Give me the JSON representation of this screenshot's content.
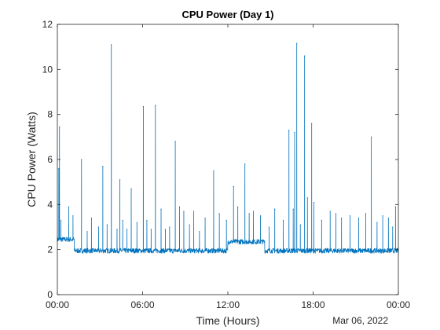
{
  "chart_data": {
    "type": "line",
    "title": "CPU Power (Day 1)",
    "xlabel": "Time (Hours)",
    "ylabel": "CPU Power (Watts)",
    "date_label": "Mar 06, 2022",
    "xlim": [
      0,
      24
    ],
    "ylim": [
      0,
      12
    ],
    "x_ticks": [
      0,
      6,
      12,
      18,
      24
    ],
    "x_tick_labels": [
      "00:00",
      "06:00",
      "12:00",
      "18:00",
      "00:00"
    ],
    "y_ticks": [
      0,
      2,
      4,
      6,
      8,
      10,
      12
    ],
    "grid": false,
    "line_color": "#0072BD",
    "series": [
      {
        "baseline_segments": [
          {
            "x_start": 0.0,
            "x_end": 1.2,
            "level": 2.45
          },
          {
            "x_start": 1.2,
            "x_end": 12.0,
            "level": 1.95
          },
          {
            "x_start": 12.0,
            "x_end": 14.6,
            "level": 2.35
          },
          {
            "x_start": 14.6,
            "x_end": 24.0,
            "level": 1.95
          }
        ],
        "spikes": [
          {
            "x": 0.1,
            "y": 5.6
          },
          {
            "x": 0.15,
            "y": 7.45
          },
          {
            "x": 0.25,
            "y": 3.3
          },
          {
            "x": 0.8,
            "y": 3.9
          },
          {
            "x": 1.1,
            "y": 3.5
          },
          {
            "x": 1.7,
            "y": 6.0
          },
          {
            "x": 2.1,
            "y": 2.8
          },
          {
            "x": 2.4,
            "y": 3.4
          },
          {
            "x": 2.9,
            "y": 3.0
          },
          {
            "x": 3.2,
            "y": 5.7
          },
          {
            "x": 3.5,
            "y": 3.1
          },
          {
            "x": 3.8,
            "y": 11.1
          },
          {
            "x": 4.2,
            "y": 2.9
          },
          {
            "x": 4.4,
            "y": 5.1
          },
          {
            "x": 4.6,
            "y": 3.3
          },
          {
            "x": 4.9,
            "y": 2.9
          },
          {
            "x": 5.2,
            "y": 4.7
          },
          {
            "x": 5.6,
            "y": 3.2
          },
          {
            "x": 6.05,
            "y": 8.35
          },
          {
            "x": 6.3,
            "y": 3.3
          },
          {
            "x": 6.6,
            "y": 2.9
          },
          {
            "x": 6.9,
            "y": 8.4
          },
          {
            "x": 7.3,
            "y": 3.8
          },
          {
            "x": 7.6,
            "y": 2.9
          },
          {
            "x": 7.9,
            "y": 3.0
          },
          {
            "x": 8.3,
            "y": 6.8
          },
          {
            "x": 8.6,
            "y": 3.9
          },
          {
            "x": 8.9,
            "y": 3.7
          },
          {
            "x": 9.3,
            "y": 3.1
          },
          {
            "x": 9.6,
            "y": 3.7
          },
          {
            "x": 10.0,
            "y": 2.8
          },
          {
            "x": 10.4,
            "y": 3.4
          },
          {
            "x": 11.0,
            "y": 5.5
          },
          {
            "x": 11.4,
            "y": 3.6
          },
          {
            "x": 11.9,
            "y": 3.3
          },
          {
            "x": 12.4,
            "y": 4.8
          },
          {
            "x": 12.7,
            "y": 3.9
          },
          {
            "x": 13.2,
            "y": 5.8
          },
          {
            "x": 13.5,
            "y": 3.6
          },
          {
            "x": 13.8,
            "y": 3.7
          },
          {
            "x": 14.3,
            "y": 3.5
          },
          {
            "x": 14.9,
            "y": 3.0
          },
          {
            "x": 15.3,
            "y": 3.8
          },
          {
            "x": 15.9,
            "y": 3.3
          },
          {
            "x": 16.3,
            "y": 7.3
          },
          {
            "x": 16.6,
            "y": 3.8
          },
          {
            "x": 16.7,
            "y": 7.2
          },
          {
            "x": 16.85,
            "y": 11.15
          },
          {
            "x": 17.1,
            "y": 3.1
          },
          {
            "x": 17.4,
            "y": 10.6
          },
          {
            "x": 17.6,
            "y": 4.3
          },
          {
            "x": 17.9,
            "y": 7.6
          },
          {
            "x": 18.05,
            "y": 4.1
          },
          {
            "x": 18.6,
            "y": 3.3
          },
          {
            "x": 19.2,
            "y": 3.7
          },
          {
            "x": 19.6,
            "y": 3.6
          },
          {
            "x": 20.0,
            "y": 3.4
          },
          {
            "x": 20.6,
            "y": 3.5
          },
          {
            "x": 21.2,
            "y": 3.4
          },
          {
            "x": 21.7,
            "y": 3.6
          },
          {
            "x": 22.1,
            "y": 7.0
          },
          {
            "x": 22.5,
            "y": 3.2
          },
          {
            "x": 22.9,
            "y": 3.5
          },
          {
            "x": 23.3,
            "y": 3.4
          },
          {
            "x": 23.6,
            "y": 3.0
          },
          {
            "x": 23.8,
            "y": 3.9
          }
        ]
      }
    ]
  }
}
